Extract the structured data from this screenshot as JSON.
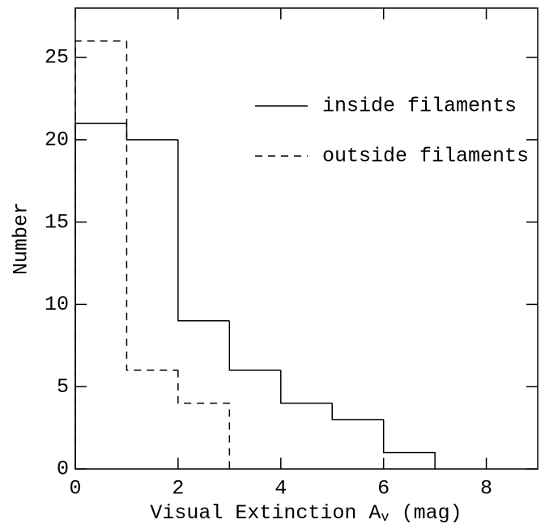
{
  "chart_data": {
    "type": "histogram",
    "xlabel": [
      "Visual Extinction  A",
      "v",
      " (mag)"
    ],
    "ylabel": "Number",
    "series": [
      {
        "name": "inside filaments",
        "color": "#000000",
        "dash": "solid",
        "bins": [
          0,
          1,
          2,
          3,
          4,
          5,
          6,
          7
        ],
        "values": [
          21,
          20,
          9,
          6,
          4,
          3,
          1
        ]
      },
      {
        "name": "outside filaments",
        "color": "#000000",
        "dash": "dashed",
        "bins": [
          0,
          1,
          2,
          3
        ],
        "values": [
          26,
          6,
          4
        ]
      }
    ],
    "xlim": [
      0,
      9
    ],
    "ylim": [
      0,
      28
    ],
    "xticks": [
      0,
      2,
      4,
      6,
      8
    ],
    "yticks": [
      0,
      5,
      10,
      15,
      20,
      25
    ],
    "legend": "upper right"
  }
}
